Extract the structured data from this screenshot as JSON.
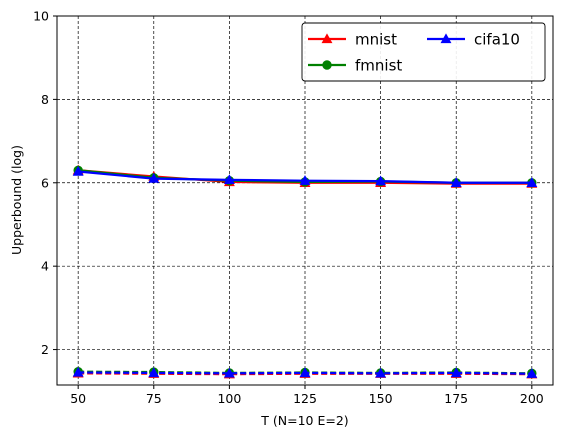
{
  "chart_data": {
    "type": "line",
    "title": "",
    "xlabel": "T (N=10 E=2)",
    "ylabel": "Upperbound (log)",
    "x": [
      50,
      75,
      100,
      125,
      150,
      175,
      200
    ],
    "xlim": [
      43,
      207
    ],
    "ylim": [
      1.15,
      10
    ],
    "xticks": [
      "50",
      "75",
      "100",
      "125",
      "150",
      "175",
      "200"
    ],
    "yticks": [
      "2",
      "4",
      "6",
      "8",
      "10"
    ],
    "grid": true,
    "legend": {
      "position": "upper-right",
      "columns": 2
    },
    "series": [
      {
        "name": "mnist",
        "color": "#ff0000",
        "marker": "triangle",
        "linestyle": "solid",
        "values": [
          6.3,
          6.15,
          6.02,
          6.0,
          6.0,
          5.98,
          5.98
        ]
      },
      {
        "name": "fmnist",
        "color": "#008000",
        "marker": "circle",
        "linestyle": "solid",
        "values": [
          6.3,
          6.12,
          6.05,
          6.02,
          6.03,
          6.0,
          6.0
        ]
      },
      {
        "name": "cifa10",
        "color": "#0000ff",
        "marker": "triangle",
        "linestyle": "solid",
        "values": [
          6.27,
          6.1,
          6.07,
          6.05,
          6.04,
          6.0,
          6.0
        ]
      },
      {
        "name": "",
        "color": "#ff0000",
        "marker": "triangle",
        "linestyle": "dashed",
        "values": [
          1.43,
          1.42,
          1.41,
          1.42,
          1.42,
          1.42,
          1.41
        ]
      },
      {
        "name": "",
        "color": "#008000",
        "marker": "circle",
        "linestyle": "dashed",
        "values": [
          1.47,
          1.46,
          1.44,
          1.45,
          1.44,
          1.45,
          1.43
        ]
      },
      {
        "name": "",
        "color": "#0000ff",
        "marker": "triangle",
        "linestyle": "dashed",
        "values": [
          1.45,
          1.44,
          1.43,
          1.44,
          1.43,
          1.44,
          1.42
        ]
      }
    ]
  }
}
